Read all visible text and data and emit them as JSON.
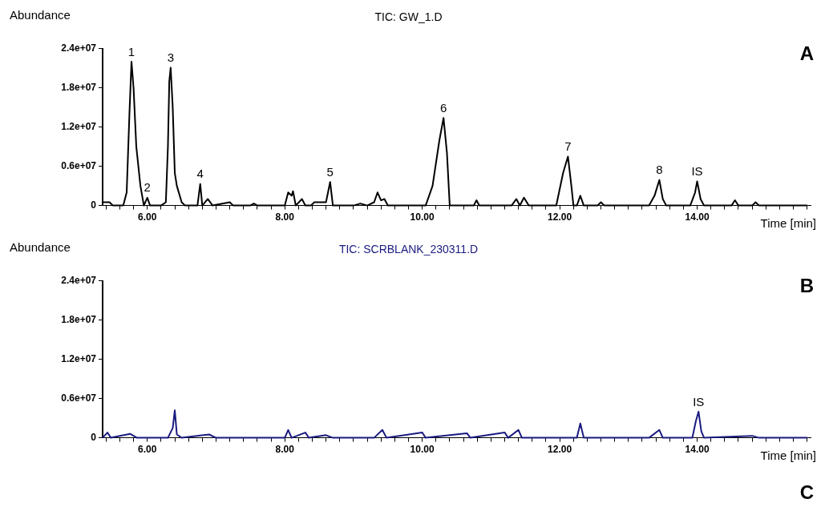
{
  "chart_data": [
    {
      "type": "line",
      "title": "TIC: GW_1.D",
      "ylabel": "Abundance",
      "xlabel": "Time [min]",
      "xlim": [
        5.35,
        15.65
      ],
      "xticks": [
        {
          "value": 5.4,
          "label": null
        },
        {
          "value": 5.6,
          "label": null
        },
        {
          "value": 5.8,
          "label": null
        },
        {
          "value": 6,
          "label": "6.00"
        },
        {
          "value": 6.2,
          "label": null
        },
        {
          "value": 6.4,
          "label": null
        },
        {
          "value": 6.6,
          "label": null
        },
        {
          "value": 6.8,
          "label": null
        },
        {
          "value": 7,
          "label": null
        },
        {
          "value": 7.2,
          "label": null
        },
        {
          "value": 7.4,
          "label": null
        },
        {
          "value": 7.6,
          "label": null
        },
        {
          "value": 7.8,
          "label": null
        },
        {
          "value": 8,
          "label": "8.00"
        },
        {
          "value": 8.2,
          "label": null
        },
        {
          "value": 8.4,
          "label": null
        },
        {
          "value": 8.6,
          "label": null
        },
        {
          "value": 8.8,
          "label": null
        },
        {
          "value": 9,
          "label": null
        },
        {
          "value": 9.2,
          "label": null
        },
        {
          "value": 9.4,
          "label": null
        },
        {
          "value": 9.6,
          "label": null
        },
        {
          "value": 9.8,
          "label": null
        },
        {
          "value": 10,
          "label": "10.00"
        },
        {
          "value": 10.2,
          "label": null
        },
        {
          "value": 10.4,
          "label": null
        },
        {
          "value": 10.6,
          "label": null
        },
        {
          "value": 10.8,
          "label": null
        },
        {
          "value": 11,
          "label": null
        },
        {
          "value": 11.2,
          "label": null
        },
        {
          "value": 11.4,
          "label": null
        },
        {
          "value": 11.6,
          "label": null
        },
        {
          "value": 11.8,
          "label": null
        },
        {
          "value": 12,
          "label": "12.00"
        },
        {
          "value": 12.2,
          "label": null
        },
        {
          "value": 12.4,
          "label": null
        },
        {
          "value": 12.6,
          "label": null
        },
        {
          "value": 12.8,
          "label": null
        },
        {
          "value": 13,
          "label": null
        },
        {
          "value": 13.2,
          "label": null
        },
        {
          "value": 13.4,
          "label": null
        },
        {
          "value": 13.6,
          "label": null
        },
        {
          "value": 13.8,
          "label": null
        },
        {
          "value": 14,
          "label": "14.00"
        },
        {
          "value": 14.2,
          "label": null
        },
        {
          "value": 14.4,
          "label": null
        },
        {
          "value": 14.6,
          "label": null
        },
        {
          "value": 14.8,
          "label": null
        },
        {
          "value": 15,
          "label": null
        },
        {
          "value": 15.2,
          "label": null
        },
        {
          "value": 15.4,
          "label": null
        },
        {
          "value": 15.6,
          "label": null
        }
      ],
      "ylim": [
        0,
        24000000
      ],
      "yticks": [
        {
          "value": 0,
          "label": "0"
        },
        {
          "value": 6000000,
          "label": "0.6e+07"
        },
        {
          "value": 12000000,
          "label": "1.2e+07"
        },
        {
          "value": 18000000,
          "label": "1.8e+07"
        },
        {
          "value": 24000000,
          "label": "2.4e+07"
        }
      ],
      "grid": false,
      "legend": false,
      "marker": "none",
      "series": [
        {
          "color": "#000000",
          "x": [
            5.35,
            5.45,
            5.5,
            5.65,
            5.7,
            5.74,
            5.77,
            5.8,
            5.84,
            5.9,
            5.95,
            6.0,
            6.04,
            6.2,
            6.27,
            6.3,
            6.32,
            6.34,
            6.37,
            6.4,
            6.43,
            6.5,
            6.55,
            6.73,
            6.77,
            6.8,
            6.88,
            6.95,
            7.2,
            7.25,
            7.5,
            7.55,
            7.6,
            8.0,
            8.05,
            8.1,
            8.12,
            8.16,
            8.25,
            8.3,
            8.38,
            8.43,
            8.6,
            8.66,
            8.7,
            9.0,
            9.1,
            9.2,
            9.3,
            9.35,
            9.4,
            9.45,
            9.5,
            10.05,
            10.15,
            10.25,
            10.31,
            10.36,
            10.4,
            10.75,
            10.79,
            10.83,
            11.3,
            11.37,
            11.42,
            11.48,
            11.55,
            11.95,
            12.05,
            12.12,
            12.17,
            12.2,
            12.25,
            12.3,
            12.35,
            12.55,
            12.6,
            12.65,
            13.3,
            13.38,
            13.45,
            13.5,
            13.55,
            13.9,
            13.97,
            14.0,
            14.05,
            14.1,
            14.5,
            14.55,
            14.6,
            14.8,
            14.85,
            14.9,
            15.6
          ],
          "values": [
            500000,
            500000,
            0,
            0,
            2000000,
            14000000,
            22000000,
            18000000,
            9000000,
            3000000,
            0,
            1200000,
            0,
            0,
            500000,
            9000000,
            19000000,
            21100000,
            15000000,
            5000000,
            3000000,
            500000,
            0,
            0,
            3300000,
            0,
            1000000,
            0,
            500000,
            0,
            0,
            300000,
            0,
            0,
            2000000,
            1500000,
            2200000,
            0,
            1000000,
            0,
            0,
            500000,
            500000,
            3600000,
            0,
            0,
            300000,
            0,
            500000,
            2000000,
            800000,
            1000000,
            0,
            0,
            3000000,
            10000000,
            13400000,
            8000000,
            0,
            0,
            800000,
            0,
            0,
            1000000,
            0,
            1200000,
            0,
            0,
            5000000,
            7500000,
            3000000,
            0,
            0,
            1500000,
            0,
            0,
            500000,
            0,
            0,
            1500000,
            3900000,
            1000000,
            0,
            0,
            2000000,
            3700000,
            1000000,
            0,
            0,
            800000,
            0,
            0,
            500000,
            0,
            0
          ]
        }
      ],
      "annotations": [
        {
          "text": "1",
          "x": 5.77,
          "y": 22000000
        },
        {
          "text": "2",
          "x": 6.0,
          "y": 1200000
        },
        {
          "text": "3",
          "x": 6.34,
          "y": 21100000
        },
        {
          "text": "4",
          "x": 6.77,
          "y": 3300000
        },
        {
          "text": "5",
          "x": 8.66,
          "y": 3600000
        },
        {
          "text": "6",
          "x": 10.31,
          "y": 13400000
        },
        {
          "text": "7",
          "x": 12.12,
          "y": 7500000
        },
        {
          "text": "8",
          "x": 13.45,
          "y": 3900000
        },
        {
          "text": "IS",
          "x": 14.0,
          "y": 3700000
        },
        "A"
      ]
    },
    {
      "type": "line",
      "title": "TIC: SCRBLANK_230311.D",
      "ylabel": "Abundance",
      "xlabel": "Time [min]",
      "xlim": [
        5.35,
        15.65
      ],
      "xticks": [
        {
          "value": 5.4,
          "label": null
        },
        {
          "value": 5.6,
          "label": null
        },
        {
          "value": 5.8,
          "label": null
        },
        {
          "value": 6,
          "label": "6.00"
        },
        {
          "value": 6.2,
          "label": null
        },
        {
          "value": 6.4,
          "label": null
        },
        {
          "value": 6.6,
          "label": null
        },
        {
          "value": 6.8,
          "label": null
        },
        {
          "value": 7,
          "label": null
        },
        {
          "value": 7.2,
          "label": null
        },
        {
          "value": 7.4,
          "label": null
        },
        {
          "value": 7.6,
          "label": null
        },
        {
          "value": 7.8,
          "label": null
        },
        {
          "value": 8,
          "label": "8.00"
        },
        {
          "value": 8.2,
          "label": null
        },
        {
          "value": 8.4,
          "label": null
        },
        {
          "value": 8.6,
          "label": null
        },
        {
          "value": 8.8,
          "label": null
        },
        {
          "value": 9,
          "label": null
        },
        {
          "value": 9.2,
          "label": null
        },
        {
          "value": 9.4,
          "label": null
        },
        {
          "value": 9.6,
          "label": null
        },
        {
          "value": 9.8,
          "label": null
        },
        {
          "value": 10,
          "label": "10.00"
        },
        {
          "value": 10.2,
          "label": null
        },
        {
          "value": 10.4,
          "label": null
        },
        {
          "value": 10.6,
          "label": null
        },
        {
          "value": 10.8,
          "label": null
        },
        {
          "value": 11,
          "label": null
        },
        {
          "value": 11.2,
          "label": null
        },
        {
          "value": 11.4,
          "label": null
        },
        {
          "value": 11.6,
          "label": null
        },
        {
          "value": 11.8,
          "label": null
        },
        {
          "value": 12,
          "label": "12.00"
        },
        {
          "value": 12.2,
          "label": null
        },
        {
          "value": 12.4,
          "label": null
        },
        {
          "value": 12.6,
          "label": null
        },
        {
          "value": 12.8,
          "label": null
        },
        {
          "value": 13,
          "label": null
        },
        {
          "value": 13.2,
          "label": null
        },
        {
          "value": 13.4,
          "label": null
        },
        {
          "value": 13.6,
          "label": null
        },
        {
          "value": 13.8,
          "label": null
        },
        {
          "value": 14,
          "label": "14.00"
        },
        {
          "value": 14.2,
          "label": null
        },
        {
          "value": 14.4,
          "label": null
        },
        {
          "value": 14.6,
          "label": null
        },
        {
          "value": 14.8,
          "label": null
        },
        {
          "value": 15,
          "label": null
        },
        {
          "value": 15.2,
          "label": null
        },
        {
          "value": 15.4,
          "label": null
        },
        {
          "value": 15.6,
          "label": null
        }
      ],
      "ylim": [
        0,
        24000000
      ],
      "yticks": [
        {
          "value": 0,
          "label": "0"
        },
        {
          "value": 6000000,
          "label": "0.6e+07"
        },
        {
          "value": 12000000,
          "label": "1.2e+07"
        },
        {
          "value": 18000000,
          "label": "1.8e+07"
        },
        {
          "value": 24000000,
          "label": "2.4e+07"
        }
      ],
      "grid": false,
      "legend": false,
      "marker": "none",
      "series": [
        {
          "color": "#1a1a80",
          "x": [
            5.35,
            5.42,
            5.47,
            5.6,
            5.75,
            5.85,
            6.3,
            6.37,
            6.4,
            6.43,
            6.5,
            6.9,
            7.0,
            8.0,
            8.05,
            8.1,
            8.3,
            8.35,
            8.6,
            8.7,
            9.3,
            9.42,
            9.48,
            10.0,
            10.05,
            10.65,
            10.7,
            11.2,
            11.25,
            11.4,
            11.45,
            12.25,
            12.3,
            12.35,
            13.3,
            13.45,
            13.5,
            13.93,
            13.98,
            14.02,
            14.06,
            14.1,
            14.8,
            14.9,
            15.6
          ],
          "values": [
            0,
            800000,
            0,
            300000,
            600000,
            0,
            0,
            1500000,
            4200000,
            500000,
            0,
            500000,
            0,
            0,
            1200000,
            0,
            800000,
            0,
            400000,
            0,
            0,
            1200000,
            0,
            800000,
            0,
            700000,
            0,
            800000,
            0,
            1200000,
            0,
            0,
            2200000,
            0,
            0,
            1200000,
            0,
            0,
            2500000,
            4000000,
            1000000,
            0,
            300000,
            0,
            0
          ]
        }
      ],
      "annotations": [
        {
          "text": "IS",
          "x": 14.02,
          "y": 4000000
        },
        "B",
        "C"
      ]
    }
  ]
}
